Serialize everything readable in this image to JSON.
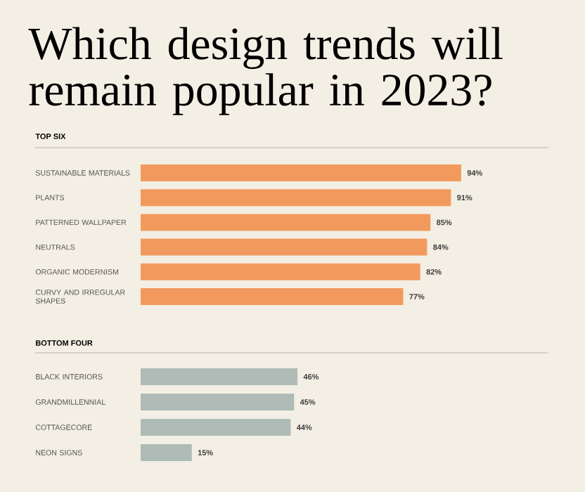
{
  "chart_data": [
    {
      "type": "bar",
      "orientation": "horizontal",
      "title": "Which design trends will remain popular in 2023?",
      "subtitle": "TOP SIX",
      "categories": [
        "SUSTAINABLE MATERIALS",
        "PLANTS",
        "PATTERNED WALLPAPER",
        "NEUTRALS",
        "ORGANIC MODERNISM",
        "CURVY AND IRREGULAR SHAPES"
      ],
      "values": [
        94,
        91,
        85,
        84,
        82,
        77
      ],
      "value_labels": [
        "94%",
        "91%",
        "85%",
        "84%",
        "82%",
        "77%"
      ],
      "color": "#f29a5e"
    },
    {
      "type": "bar",
      "orientation": "horizontal",
      "title": "BOTTOM FOUR",
      "categories": [
        "BLACK INTERIORS",
        "GRANDMILLENNIAL",
        "COTTAGECORE",
        "NEON SIGNS"
      ],
      "values": [
        46,
        45,
        44,
        15
      ],
      "value_labels": [
        "46%",
        "45%",
        "44%",
        "15%"
      ],
      "color": "#aebbb7"
    }
  ]
}
